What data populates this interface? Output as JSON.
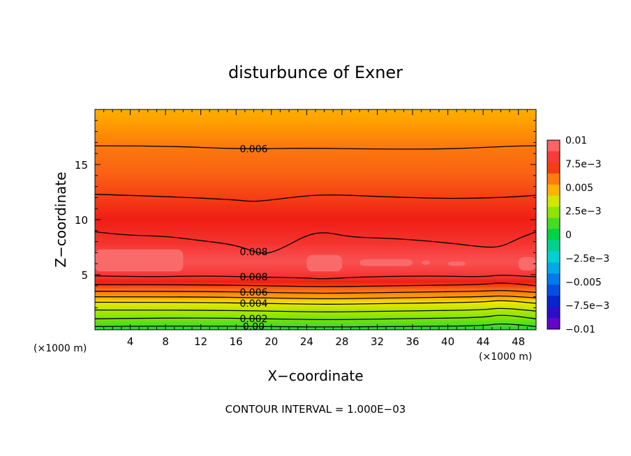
{
  "chart_data": {
    "type": "heatmap",
    "title": "disturbunce of Exner",
    "xlabel": "X−coordinate",
    "ylabel": "Z−coordinate",
    "x_unit_label": "(×1000 m)",
    "y_unit_label": "(×1000 m)",
    "footnote": "CONTOUR INTERVAL = 1.000E−03",
    "xlim": [
      0,
      50
    ],
    "ylim": [
      0,
      20
    ],
    "x_ticks": [
      4,
      8,
      12,
      16,
      20,
      24,
      28,
      32,
      36,
      40,
      44,
      48
    ],
    "y_ticks": [
      5,
      10,
      15
    ],
    "colorbar": {
      "min": -0.01,
      "max": 0.01,
      "labels": [
        {
          "value": 0.01,
          "text": "0.01"
        },
        {
          "value": 0.0075,
          "text": "7.5e−3"
        },
        {
          "value": 0.005,
          "text": "0.005"
        },
        {
          "value": 0.0025,
          "text": "2.5e−3"
        },
        {
          "value": 0,
          "text": "0"
        },
        {
          "value": -0.0025,
          "text": "−2.5e−3"
        },
        {
          "value": -0.005,
          "text": "−0.005"
        },
        {
          "value": -0.0075,
          "text": "−7.5e−3"
        },
        {
          "value": -0.01,
          "text": "−0.01"
        }
      ]
    },
    "profile": [
      {
        "z": 0.0,
        "value": 0.0005
      },
      {
        "z": 0.3,
        "value": 0.001
      },
      {
        "z": 1.0,
        "value": 0.002
      },
      {
        "z": 1.8,
        "value": 0.003
      },
      {
        "z": 2.5,
        "value": 0.004
      },
      {
        "z": 3.0,
        "value": 0.005
      },
      {
        "z": 3.5,
        "value": 0.006
      },
      {
        "z": 4.0,
        "value": 0.007
      },
      {
        "z": 4.8,
        "value": 0.008
      },
      {
        "z": 6.2,
        "value": 0.0088
      },
      {
        "z": 8.0,
        "value": 0.008
      },
      {
        "z": 12.2,
        "value": 0.007
      },
      {
        "z": 16.6,
        "value": 0.006
      },
      {
        "z": 19.0,
        "value": 0.005
      },
      {
        "z": 20.0,
        "value": 0.0048
      }
    ],
    "contours": [
      {
        "value": 0.006,
        "label": "0.006",
        "label_x": 18,
        "points": [
          [
            0,
            16.7
          ],
          [
            8,
            16.7
          ],
          [
            16,
            16.4
          ],
          [
            24,
            16.5
          ],
          [
            32,
            16.4
          ],
          [
            40,
            16.4
          ],
          [
            48,
            16.7
          ],
          [
            50,
            16.7
          ]
        ]
      },
      {
        "value": 0.007,
        "label": "",
        "points": [
          [
            0,
            12.3
          ],
          [
            8,
            12.1
          ],
          [
            16,
            11.8
          ],
          [
            18,
            11.6
          ],
          [
            22,
            12.0
          ],
          [
            26,
            12.3
          ],
          [
            32,
            12.1
          ],
          [
            40,
            11.9
          ],
          [
            46,
            12.0
          ],
          [
            50,
            12.2
          ]
        ]
      },
      {
        "value": 0.008,
        "label": "0.008",
        "label_x": 18,
        "points": [
          [
            0,
            8.9
          ],
          [
            3,
            8.6
          ],
          [
            8,
            8.5
          ],
          [
            12,
            8.1
          ],
          [
            16,
            7.7
          ],
          [
            19,
            6.8
          ],
          [
            21,
            7.3
          ],
          [
            24,
            8.6
          ],
          [
            26,
            8.9
          ],
          [
            29,
            8.4
          ],
          [
            34,
            8.3
          ],
          [
            40,
            7.9
          ],
          [
            44,
            7.5
          ],
          [
            46,
            7.5
          ],
          [
            48,
            8.3
          ],
          [
            50,
            8.9
          ]
        ]
      },
      {
        "value": 0.008,
        "label": "0.008",
        "label_x": 18,
        "points": [
          [
            0,
            4.9
          ],
          [
            6,
            4.8
          ],
          [
            12,
            4.9
          ],
          [
            18,
            4.8
          ],
          [
            24,
            4.7
          ],
          [
            26,
            4.6
          ],
          [
            30,
            4.8
          ],
          [
            38,
            4.9
          ],
          [
            44,
            4.8
          ],
          [
            46,
            5.0
          ],
          [
            50,
            4.8
          ]
        ]
      },
      {
        "value": 0.007,
        "label": "",
        "points": [
          [
            0,
            4.1
          ],
          [
            10,
            4.1
          ],
          [
            20,
            4.0
          ],
          [
            26,
            3.9
          ],
          [
            34,
            4.0
          ],
          [
            44,
            4.1
          ],
          [
            46,
            4.3
          ],
          [
            50,
            4.0
          ]
        ]
      },
      {
        "value": 0.006,
        "label": "0.006",
        "label_x": 18,
        "points": [
          [
            0,
            3.5
          ],
          [
            10,
            3.5
          ],
          [
            20,
            3.4
          ],
          [
            26,
            3.3
          ],
          [
            34,
            3.4
          ],
          [
            44,
            3.5
          ],
          [
            46,
            3.6
          ],
          [
            50,
            3.4
          ]
        ]
      },
      {
        "value": 0.005,
        "label": "",
        "points": [
          [
            0,
            3.0
          ],
          [
            10,
            3.0
          ],
          [
            20,
            2.9
          ],
          [
            26,
            2.8
          ],
          [
            34,
            2.9
          ],
          [
            44,
            3.0
          ],
          [
            46,
            3.1
          ],
          [
            50,
            2.9
          ]
        ]
      },
      {
        "value": 0.004,
        "label": "0.004",
        "label_x": 18,
        "points": [
          [
            0,
            2.5
          ],
          [
            10,
            2.5
          ],
          [
            20,
            2.4
          ],
          [
            26,
            2.3
          ],
          [
            34,
            2.4
          ],
          [
            44,
            2.5
          ],
          [
            46,
            2.7
          ],
          [
            50,
            2.4
          ]
        ]
      },
      {
        "value": 0.003,
        "label": "",
        "points": [
          [
            0,
            1.8
          ],
          [
            10,
            1.8
          ],
          [
            20,
            1.7
          ],
          [
            26,
            1.6
          ],
          [
            34,
            1.7
          ],
          [
            44,
            1.8
          ],
          [
            46,
            2.0
          ],
          [
            50,
            1.7
          ]
        ]
      },
      {
        "value": 0.002,
        "label": "0.002",
        "label_x": 18,
        "points": [
          [
            0,
            1.0
          ],
          [
            10,
            1.1
          ],
          [
            20,
            1.0
          ],
          [
            26,
            0.9
          ],
          [
            34,
            1.0
          ],
          [
            44,
            1.1
          ],
          [
            46,
            1.4
          ],
          [
            50,
            1.0
          ]
        ]
      },
      {
        "value": 0.001,
        "label": "0.00",
        "label_x": 18,
        "points": [
          [
            0,
            0.3
          ],
          [
            10,
            0.35
          ],
          [
            20,
            0.3
          ],
          [
            26,
            0.25
          ],
          [
            34,
            0.3
          ],
          [
            44,
            0.35
          ],
          [
            46,
            0.6
          ],
          [
            50,
            0.3
          ]
        ]
      }
    ],
    "max_patches": [
      {
        "x": [
          0,
          10
        ],
        "z": [
          5.3,
          7.3
        ]
      },
      {
        "x": [
          24,
          28
        ],
        "z": [
          5.3,
          6.8
        ]
      },
      {
        "x": [
          30,
          36
        ],
        "z": [
          5.8,
          6.4
        ]
      },
      {
        "x": [
          37,
          38
        ],
        "z": [
          5.9,
          6.3
        ]
      },
      {
        "x": [
          40,
          42
        ],
        "z": [
          5.8,
          6.2
        ]
      },
      {
        "x": [
          48,
          50
        ],
        "z": [
          5.4,
          6.6
        ]
      }
    ]
  }
}
